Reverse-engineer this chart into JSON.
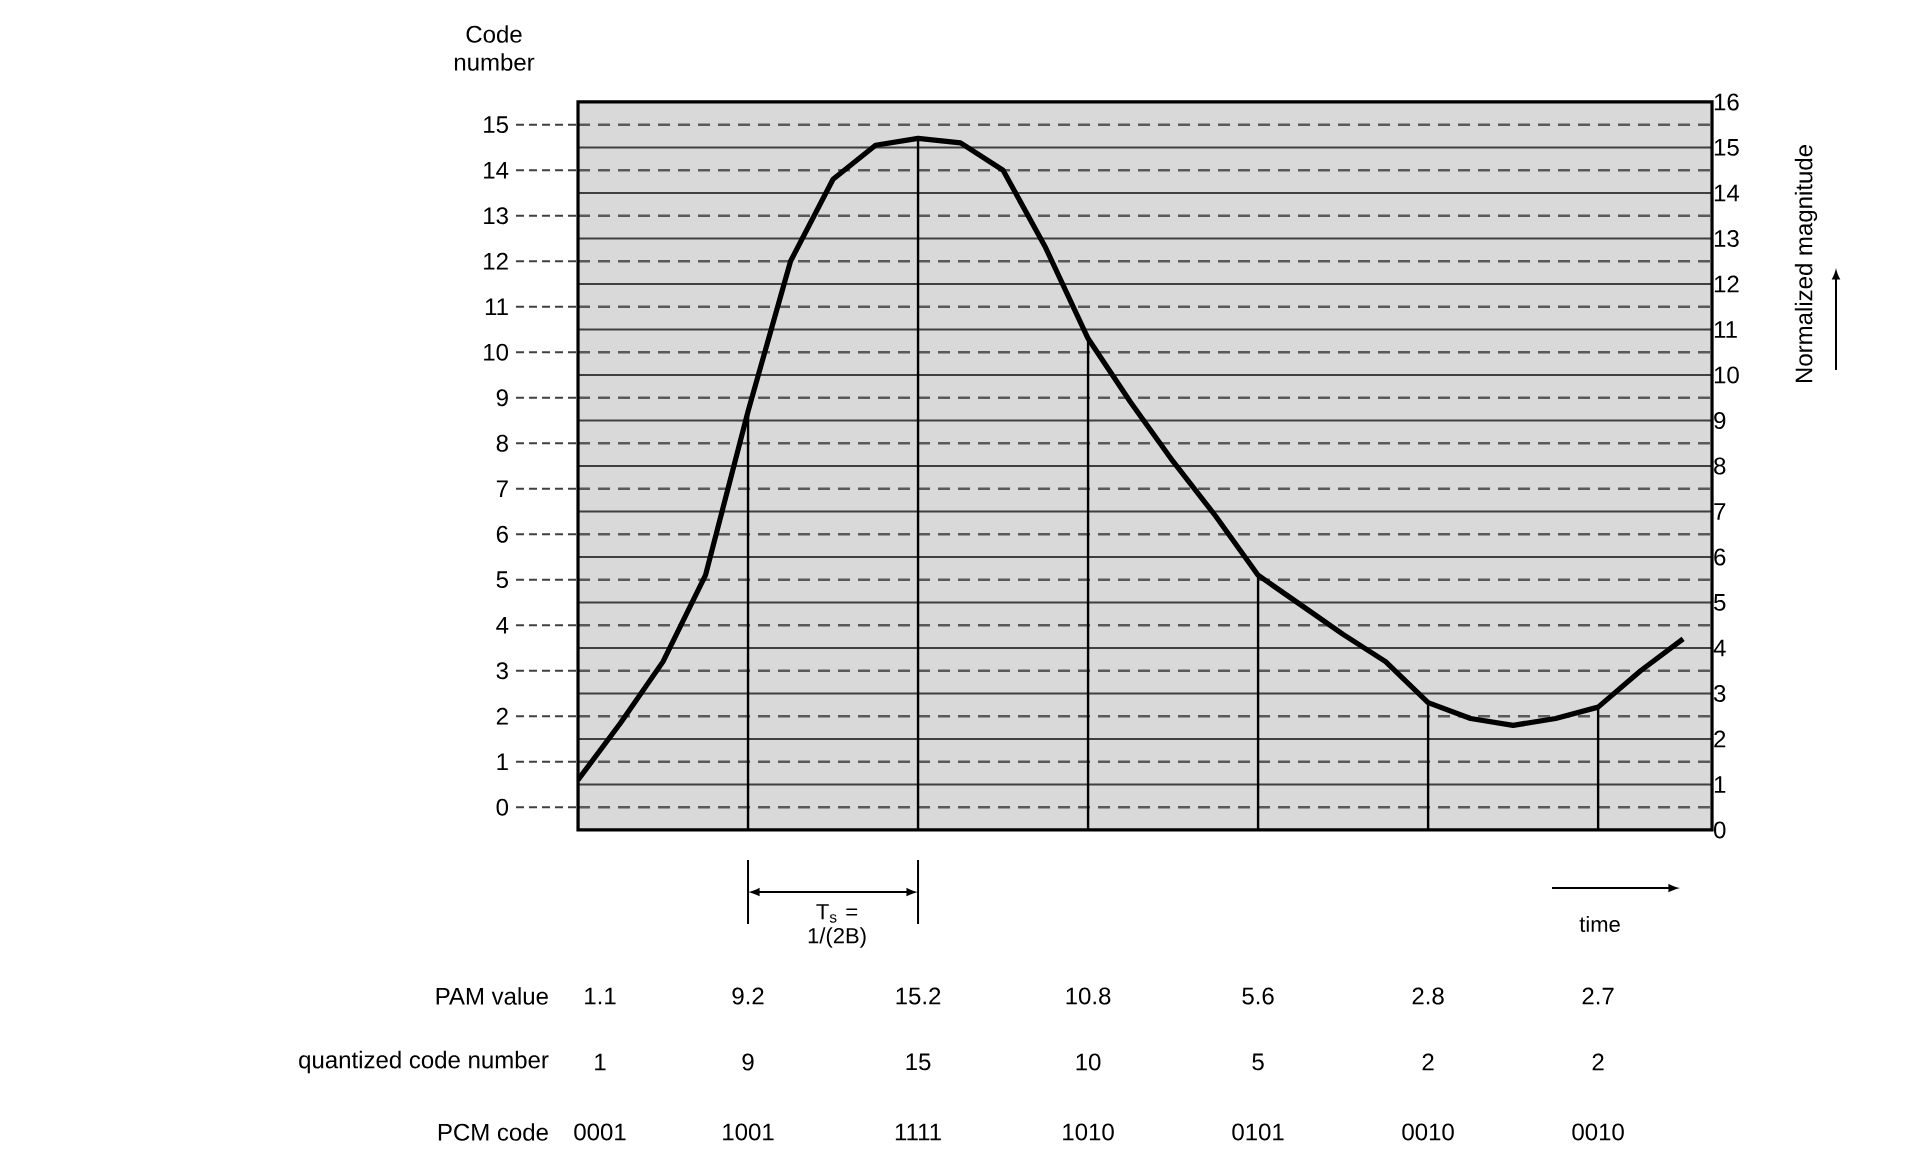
{
  "chart_data": {
    "type": "line",
    "ylabel": "Code number",
    "y2label": "Normalized magnitude",
    "categories": [
      null,
      null,
      null,
      null,
      null,
      null,
      null,
      null,
      null,
      null,
      null,
      null,
      null,
      null,
      null,
      null,
      null,
      null,
      null,
      null,
      null,
      null,
      null,
      null,
      null,
      null,
      null
    ],
    "ylim": [
      0,
      16
    ],
    "yticks": [
      {
        "value": 0.5,
        "label": "0"
      },
      {
        "value": 1.5,
        "label": "1"
      },
      {
        "value": 2.5,
        "label": "2"
      },
      {
        "value": 3.5,
        "label": "3"
      },
      {
        "value": 4.5,
        "label": "4"
      },
      {
        "value": 5.5,
        "label": "5"
      },
      {
        "value": 6.5,
        "label": "6"
      },
      {
        "value": 7.5,
        "label": "7"
      },
      {
        "value": 8.5,
        "label": "8"
      },
      {
        "value": 9.5,
        "label": "9"
      },
      {
        "value": 10.5,
        "label": "10"
      },
      {
        "value": 11.5,
        "label": "11"
      },
      {
        "value": 12.5,
        "label": "12"
      },
      {
        "value": 13.5,
        "label": "13"
      },
      {
        "value": 14.5,
        "label": "14"
      },
      {
        "value": 15.5,
        "label": "15"
      }
    ],
    "y2lim": [
      0,
      16
    ],
    "y2ticks": [
      0,
      1,
      2,
      3,
      4,
      5,
      6,
      7,
      8,
      9,
      10,
      11,
      12,
      13,
      14,
      15,
      16
    ],
    "grid": true,
    "series": [
      {
        "color": "#000000",
        "values": [
          1.1,
          2.35,
          3.7,
          5.6,
          9.2,
          12.5,
          14.3,
          15.05,
          15.2,
          15.1,
          14.5,
          12.8,
          10.8,
          9.4,
          8.1,
          6.9,
          5.6,
          4.95,
          4.3,
          3.7,
          2.8,
          2.45,
          2.3,
          2.45,
          2.7,
          3.5,
          4.2
        ]
      },
      {
        "type": "bar",
        "color": "#000000",
        "values": [
          1.1,
          null,
          null,
          null,
          9.2,
          null,
          null,
          null,
          15.2,
          null,
          null,
          null,
          10.8,
          null,
          null,
          null,
          5.6,
          null,
          null,
          null,
          2.8,
          null,
          null,
          null,
          2.7,
          null,
          null
        ]
      }
    ],
    "annotations": [
      "T$_{s}$ = 1/(2B)",
      "time",
      "PAM value",
      "quantized code number",
      "PCM code",
      "1.1",
      "9.2",
      "15.2",
      "10.8",
      "5.6",
      "2.8",
      "2.7",
      "1",
      "9",
      "15",
      "10",
      "5",
      "2",
      "2",
      "0001",
      "1001",
      "1111",
      "1010",
      "0101",
      "0010",
      "0010"
    ]
  }
}
